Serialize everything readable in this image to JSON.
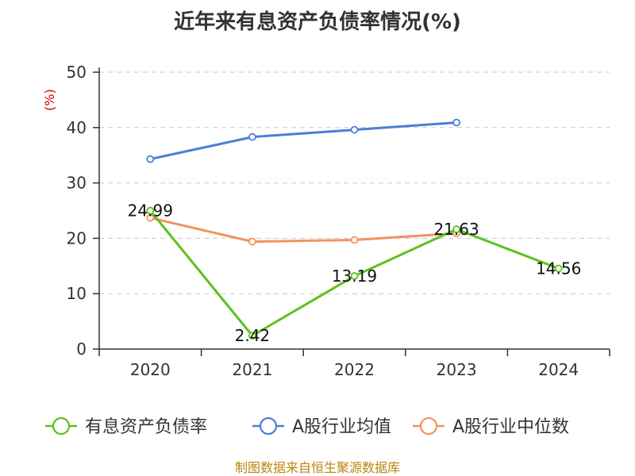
{
  "chart_data": {
    "type": "line",
    "title": "近年来有息资产负债率情况(%)",
    "ylabel": "(%)",
    "categories": [
      "2020",
      "2021",
      "2022",
      "2023",
      "2024"
    ],
    "ylim": [
      0,
      50
    ],
    "yticks": [
      0,
      10,
      20,
      30,
      40,
      50
    ],
    "grid": true,
    "legend_position": "bottom",
    "series": [
      {
        "name": "有息资产负债率",
        "color": "#5cc21d",
        "values": [
          24.99,
          2.42,
          13.19,
          21.63,
          14.56
        ],
        "labels": [
          "24.99",
          "2.42",
          "13.19",
          "21.63",
          "14.56"
        ]
      },
      {
        "name": "A股行业均值",
        "color": "#4a7fd6",
        "values": [
          34.3,
          38.3,
          39.6,
          40.9,
          null
        ]
      },
      {
        "name": "A股行业中位数",
        "color": "#f4925f",
        "values": [
          23.7,
          19.4,
          19.7,
          20.9,
          null
        ]
      }
    ]
  },
  "source": "制图数据来自恒生聚源数据库"
}
